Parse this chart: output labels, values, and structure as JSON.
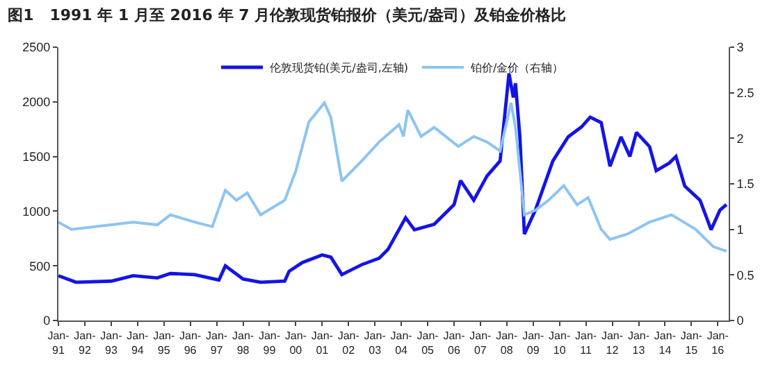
{
  "chart_data": {
    "type": "line",
    "title": "图1   1991 年 1 月至 2016 年 7 月伦敦现货铂报价（美元/盎司）及铂金价格比",
    "xlim": [
      "1991-01",
      "2016-06"
    ],
    "xticks": [
      {
        "value": "1991-01",
        "label": "Jan-\n91"
      },
      {
        "value": "1992-01",
        "label": "Jan-\n92"
      },
      {
        "value": "1993-01",
        "label": "Jan-\n93"
      },
      {
        "value": "1994-01",
        "label": "Jan-\n94"
      },
      {
        "value": "1995-01",
        "label": "Jan-\n95"
      },
      {
        "value": "1996-01",
        "label": "Jan-\n96"
      },
      {
        "value": "1997-01",
        "label": "Jan-\n97"
      },
      {
        "value": "1998-01",
        "label": "Jan-\n98"
      },
      {
        "value": "1999-01",
        "label": "Jan-\n99"
      },
      {
        "value": "2000-01",
        "label": "Jan-\n00"
      },
      {
        "value": "2001-01",
        "label": "Jan-\n01"
      },
      {
        "value": "2002-01",
        "label": "Jan-\n02"
      },
      {
        "value": "2003-01",
        "label": "Jan-\n03"
      },
      {
        "value": "2004-01",
        "label": "Jan-\n04"
      },
      {
        "value": "2005-01",
        "label": "Jan-\n05"
      },
      {
        "value": "2006-01",
        "label": "Jan-\n06"
      },
      {
        "value": "2007-01",
        "label": "Jan-\n07"
      },
      {
        "value": "2008-01",
        "label": "Jan-\n08"
      },
      {
        "value": "2009-01",
        "label": "Jan-\n09"
      },
      {
        "value": "2010-01",
        "label": "Jan-\n10"
      },
      {
        "value": "2011-01",
        "label": "Jan-\n11"
      },
      {
        "value": "2012-01",
        "label": "Jan-\n12"
      },
      {
        "value": "2013-01",
        "label": "Jan-\n13"
      },
      {
        "value": "2014-01",
        "label": "Jan-\n14"
      },
      {
        "value": "2015-01",
        "label": "Jan-\n15"
      },
      {
        "value": "2016-01",
        "label": "Jan-\n16"
      }
    ],
    "ylim": [
      0,
      2500
    ],
    "yticks": [
      0,
      500,
      1000,
      1500,
      2000,
      2500
    ],
    "y2lim": [
      0,
      3
    ],
    "y2ticks": [
      0,
      0.5,
      1,
      1.5,
      2,
      2.5,
      3
    ],
    "legend": "top",
    "marker": "none",
    "line_style": "solid",
    "series": [
      {
        "name": "伦敦现货铂(美元/盎司,左轴)",
        "color": "#1414e6",
        "x": [
          "1991-01",
          "1991-09",
          "1993-01",
          "1993-11",
          "1994-10",
          "1995-04",
          "1996-03",
          "1997-02",
          "1997-05",
          "1998-01",
          "1998-09",
          "1999-08",
          "1999-10",
          "2000-04",
          "2001-01",
          "2001-05",
          "2001-10",
          "2002-07",
          "2003-03",
          "2003-07",
          "2004-03",
          "2004-07",
          "2005-04",
          "2006-01",
          "2006-04",
          "2006-10",
          "2007-04",
          "2007-10",
          "2008-02",
          "2008-04",
          "2008-05",
          "2008-07",
          "2008-09",
          "2009-02",
          "2009-10",
          "2010-05",
          "2010-11",
          "2011-03",
          "2011-08",
          "2011-12",
          "2012-05",
          "2012-09",
          "2012-12",
          "2013-06",
          "2013-09",
          "2014-03",
          "2014-06",
          "2014-10",
          "2015-05",
          "2015-10",
          "2016-02",
          "2016-05"
        ],
        "values": [
          410,
          350,
          360,
          410,
          390,
          430,
          420,
          370,
          500,
          380,
          350,
          360,
          450,
          530,
          600,
          580,
          420,
          510,
          570,
          650,
          940,
          830,
          880,
          1060,
          1280,
          1100,
          1320,
          1460,
          2260,
          2040,
          2170,
          1680,
          790,
          1010,
          1460,
          1680,
          1770,
          1860,
          1810,
          1410,
          1680,
          1500,
          1720,
          1590,
          1370,
          1440,
          1500,
          1230,
          1100,
          830,
          1010,
          1060
        ]
      },
      {
        "name": "铂价/金价（右轴）",
        "color": "#8ec4f2",
        "axis": "y2",
        "x": [
          "1991-01",
          "1991-07",
          "1993-01",
          "1993-11",
          "1994-10",
          "1995-04",
          "1996-03",
          "1996-11",
          "1997-05",
          "1997-10",
          "1998-03",
          "1998-09",
          "1999-08",
          "2000-01",
          "2000-07",
          "2001-02",
          "2001-05",
          "2001-10",
          "2002-07",
          "2003-03",
          "2003-12",
          "2004-02",
          "2004-04",
          "2004-10",
          "2005-04",
          "2006-03",
          "2006-10",
          "2007-04",
          "2007-10",
          "2008-03",
          "2008-05",
          "2008-09",
          "2009-02",
          "2009-08",
          "2010-03",
          "2010-09",
          "2011-02",
          "2011-08",
          "2011-12",
          "2012-08",
          "2013-06",
          "2014-04",
          "2015-03",
          "2015-11",
          "2016-05"
        ],
        "values": [
          1.08,
          1.0,
          1.05,
          1.08,
          1.05,
          1.16,
          1.08,
          1.03,
          1.43,
          1.32,
          1.4,
          1.16,
          1.32,
          1.64,
          2.18,
          2.39,
          2.23,
          1.53,
          1.75,
          1.96,
          2.15,
          2.02,
          2.31,
          2.02,
          2.12,
          1.91,
          2.02,
          1.96,
          1.86,
          2.39,
          2.12,
          1.16,
          1.21,
          1.32,
          1.48,
          1.27,
          1.35,
          1.0,
          0.89,
          0.95,
          1.08,
          1.16,
          1.0,
          0.81,
          0.76
        ]
      }
    ]
  }
}
